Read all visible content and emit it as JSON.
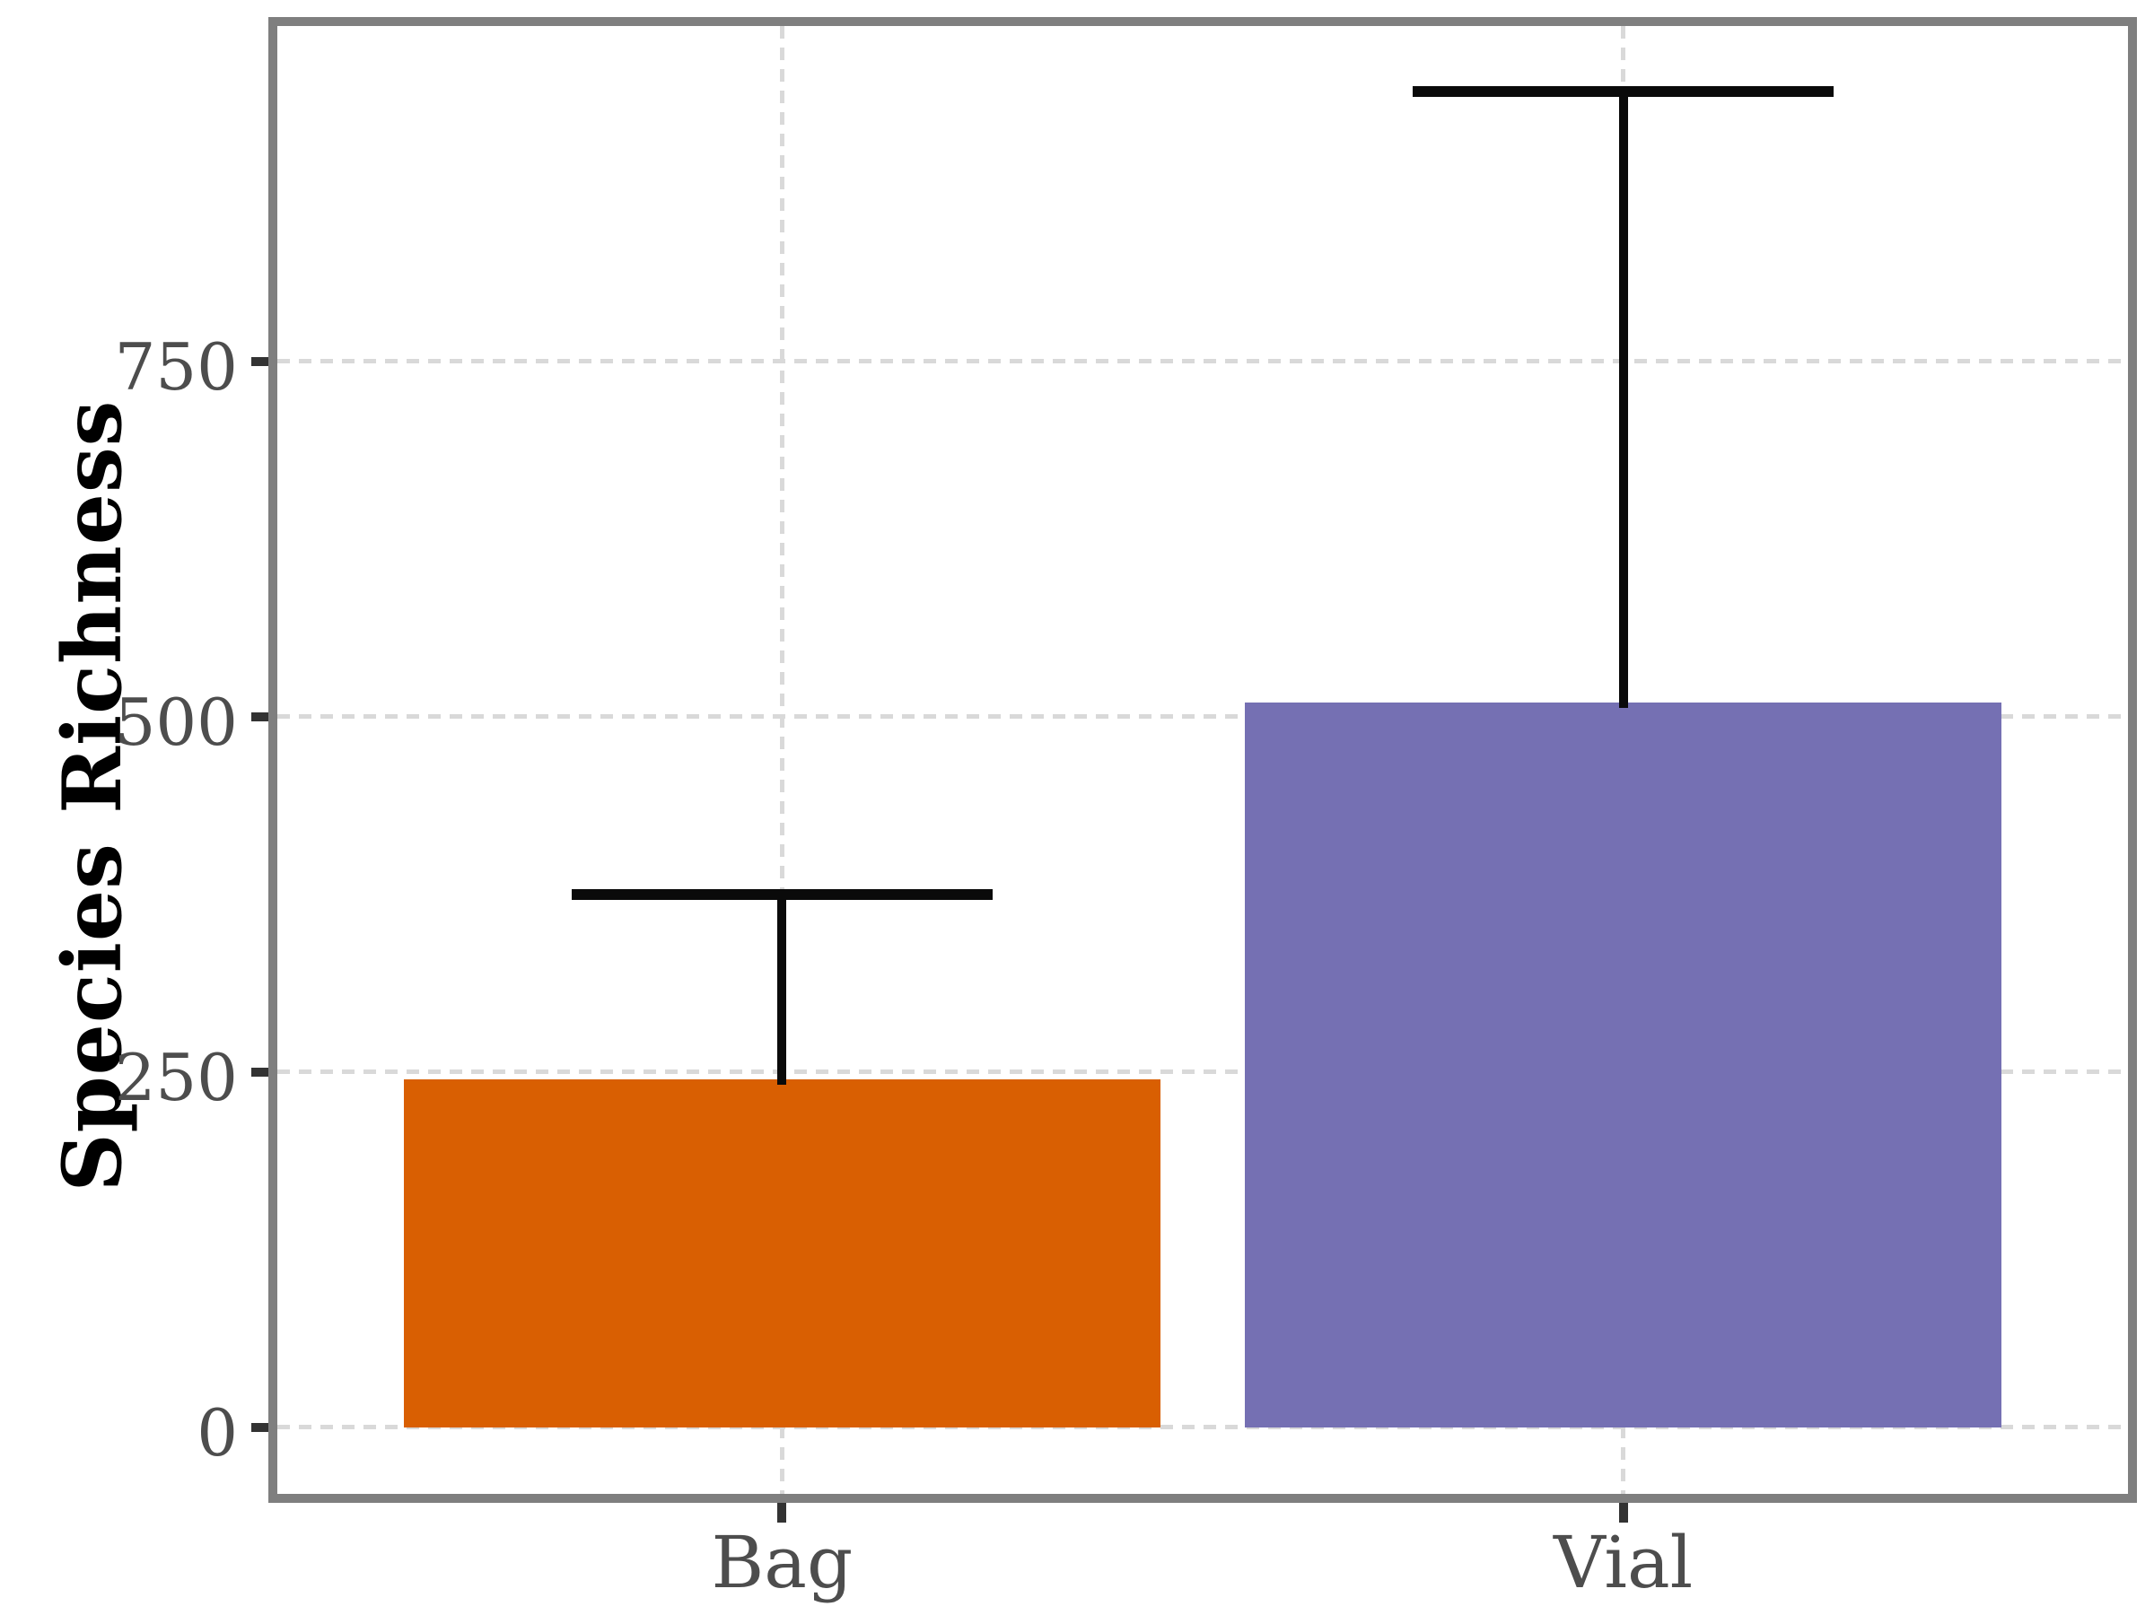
{
  "figure": {
    "y_axis_title": "Species Richness",
    "x_tick_labels": [
      "Bag",
      "Vial"
    ],
    "y_tick_labels": [
      "0",
      "250",
      "500",
      "750"
    ]
  },
  "chart_data": {
    "type": "bar",
    "title": "",
    "xlabel": "",
    "ylabel": "Species Richness",
    "categories": [
      "Bag",
      "Vial"
    ],
    "values": [
      245,
      510
    ],
    "error_upper": [
      375,
      940
    ],
    "yticks": [
      0,
      250,
      500,
      750
    ],
    "ylim": [
      -47,
      986
    ],
    "grid": "dashed light-gray horizontal gridlines at y ticks and vertical gridlines at category centers",
    "legend": "none",
    "bar_colors": [
      "#D95F02",
      "#7570B3"
    ],
    "error_bar_color": "#0A0A0A",
    "layout": {
      "bar_center_fracs": [
        0.27273,
        0.72727
      ],
      "bar_width_frac": 0.40909,
      "cap_width_frac": 0.22727
    }
  },
  "style": {
    "panel_border_color": "#7F7F7F",
    "gridline_color": "#D9D9D9",
    "tick_mark_color": "#333333",
    "tick_label_color": "#4D4D4D",
    "axis_title_color": "#000000",
    "background_color": "#FFFFFF"
  }
}
